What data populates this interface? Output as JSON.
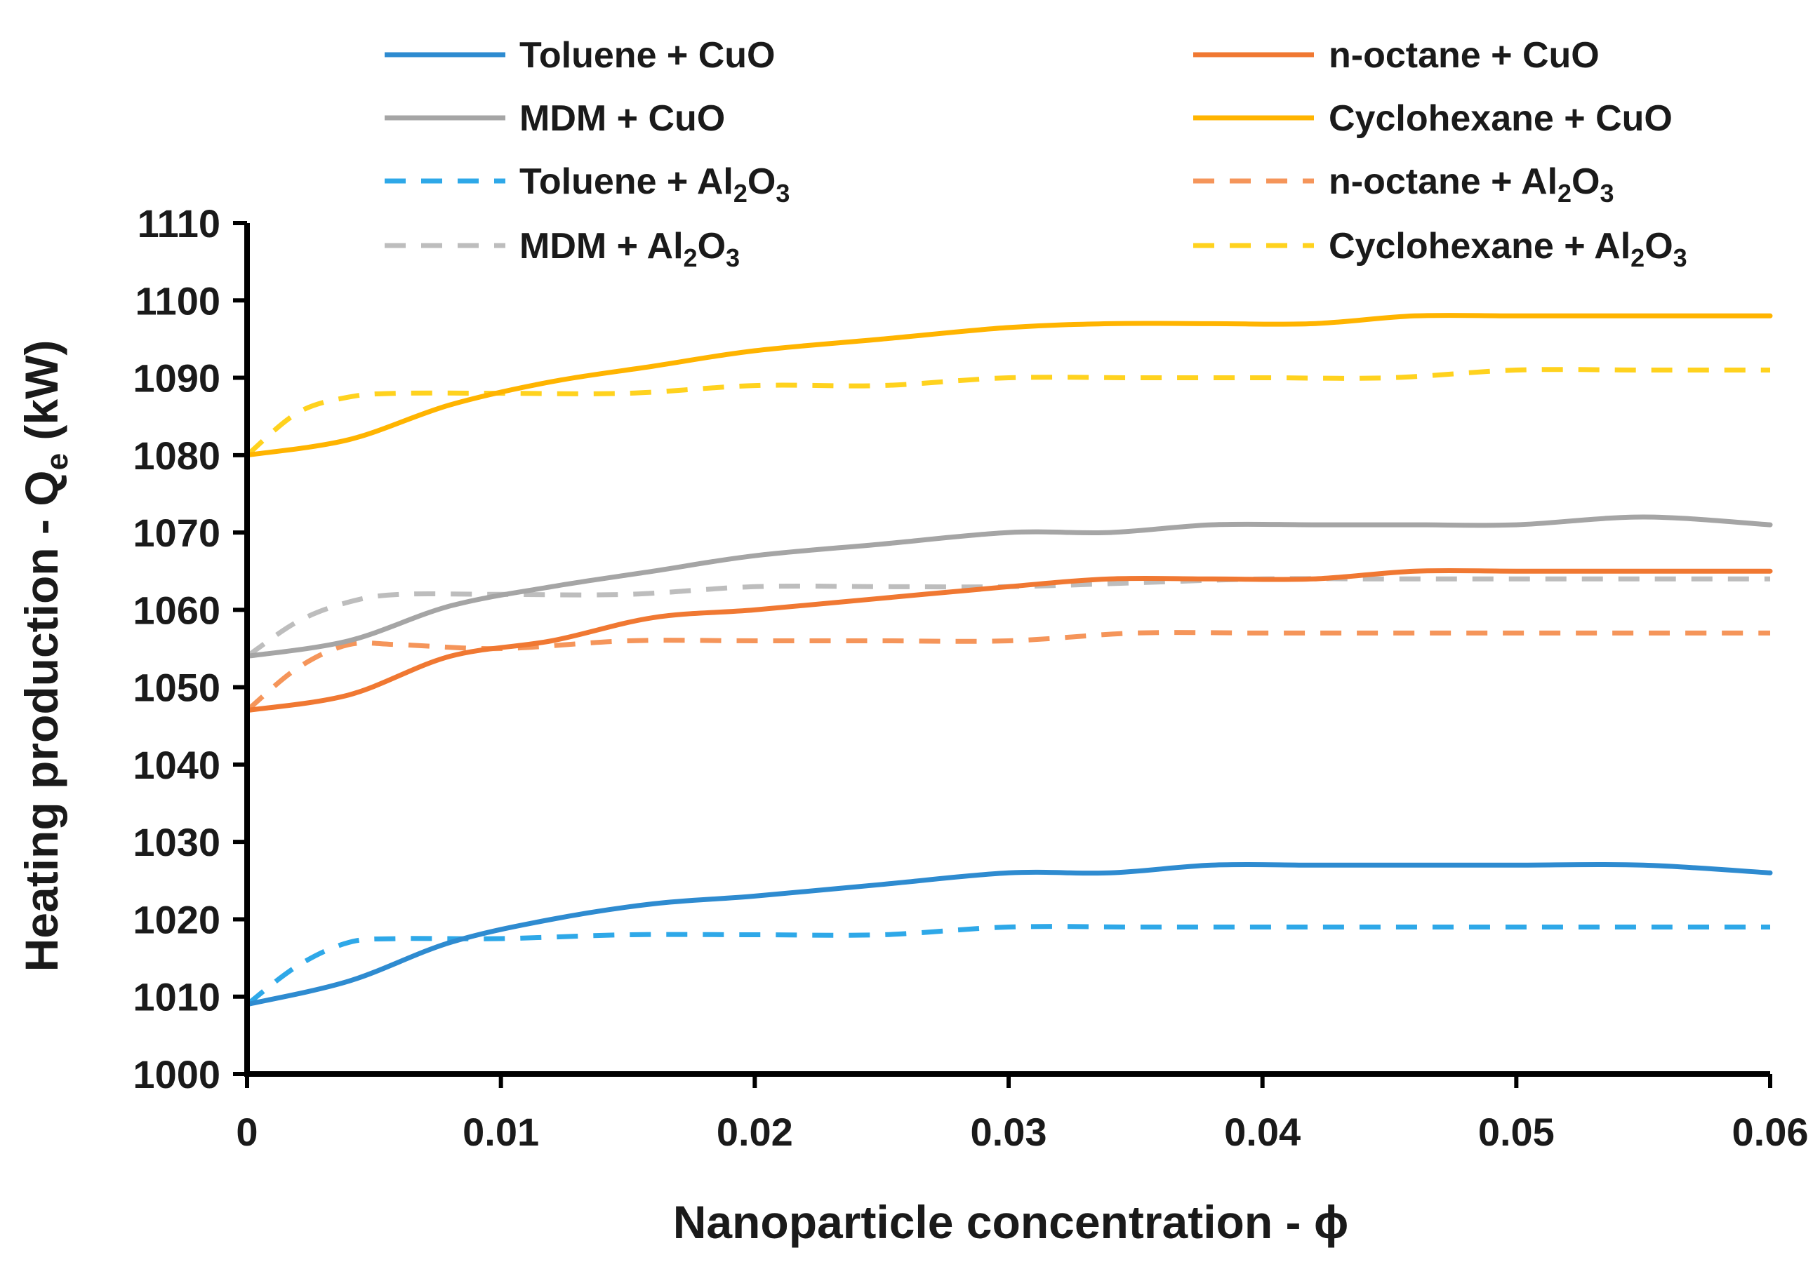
{
  "chart_data": {
    "type": "line",
    "xlabel": "Nanoparticle concentration - ϕ",
    "ylabel": "Heating production - Q",
    "ylabel_subscript": "e",
    "ylabel_unit": " (kW)",
    "xlim": [
      0,
      0.06
    ],
    "ylim": [
      1000,
      1110
    ],
    "xticks": [
      0,
      0.01,
      0.02,
      0.03,
      0.04,
      0.05,
      0.06
    ],
    "yticks": [
      1000,
      1010,
      1020,
      1030,
      1040,
      1050,
      1060,
      1070,
      1080,
      1090,
      1100,
      1110
    ],
    "xtick_labels": [
      "0",
      "0.01",
      "0.02",
      "0.03",
      "0.04",
      "0.05",
      "0.06"
    ],
    "ytick_labels": [
      "1000",
      "1010",
      "1020",
      "1030",
      "1040",
      "1050",
      "1060",
      "1070",
      "1080",
      "1090",
      "1100",
      "1110"
    ],
    "grid": false,
    "legend_position": "top",
    "series": [
      {
        "name": "Toluene + CuO",
        "legend": [
          "Toluene + CuO"
        ],
        "color": "#2e8bd0",
        "dash": false,
        "x": [
          0,
          0.004,
          0.008,
          0.012,
          0.016,
          0.02,
          0.025,
          0.03,
          0.034,
          0.038,
          0.042,
          0.046,
          0.05,
          0.055,
          0.06
        ],
        "y": [
          1009,
          1012,
          1017,
          1020,
          1022,
          1023,
          1024.5,
          1026,
          1026,
          1027,
          1027,
          1027,
          1027,
          1027,
          1026
        ]
      },
      {
        "name": "n-octane + CuO",
        "legend": [
          "n-octane + CuO"
        ],
        "color": "#f07832",
        "dash": false,
        "x": [
          0,
          0.004,
          0.008,
          0.012,
          0.016,
          0.02,
          0.025,
          0.03,
          0.034,
          0.038,
          0.042,
          0.046,
          0.05,
          0.055,
          0.06
        ],
        "y": [
          1047,
          1049,
          1054,
          1056,
          1059,
          1060,
          1061.5,
          1063,
          1064,
          1064,
          1064,
          1065,
          1065,
          1065,
          1065
        ]
      },
      {
        "name": "MDM + CuO",
        "legend": [
          "MDM + CuO"
        ],
        "color": "#a5a5a5",
        "dash": false,
        "x": [
          0,
          0.004,
          0.008,
          0.012,
          0.016,
          0.02,
          0.025,
          0.03,
          0.034,
          0.038,
          0.042,
          0.046,
          0.05,
          0.055,
          0.06
        ],
        "y": [
          1054,
          1056,
          1060.5,
          1063,
          1065,
          1067,
          1068.5,
          1070,
          1070,
          1071,
          1071,
          1071,
          1071,
          1072,
          1071
        ]
      },
      {
        "name": "Cyclohexane + CuO",
        "legend": [
          "Cyclohexane + CuO"
        ],
        "color": "#ffb400",
        "dash": false,
        "x": [
          0,
          0.004,
          0.008,
          0.012,
          0.016,
          0.02,
          0.025,
          0.03,
          0.034,
          0.038,
          0.042,
          0.046,
          0.05,
          0.055,
          0.06
        ],
        "y": [
          1080,
          1082,
          1086.5,
          1089.5,
          1091.5,
          1093.5,
          1095,
          1096.5,
          1097,
          1097,
          1097,
          1098,
          1098,
          1098,
          1098
        ]
      },
      {
        "name": "Toluene + Al2O3",
        "legend": [
          "Toluene + Al",
          "2",
          "O",
          "3"
        ],
        "color": "#2ea8e8",
        "dash": true,
        "x": [
          0,
          0.002,
          0.004,
          0.006,
          0.01,
          0.015,
          0.02,
          0.025,
          0.03,
          0.035,
          0.04,
          0.045,
          0.05,
          0.055,
          0.06
        ],
        "y": [
          1009,
          1014,
          1017,
          1017.5,
          1017.5,
          1018,
          1018,
          1018,
          1019,
          1019,
          1019,
          1019,
          1019,
          1019,
          1019
        ]
      },
      {
        "name": "n-octane + Al2O3",
        "legend": [
          "n-octane + Al",
          "2",
          "O",
          "3"
        ],
        "color": "#f5955a",
        "dash": true,
        "x": [
          0,
          0.002,
          0.004,
          0.006,
          0.01,
          0.015,
          0.02,
          0.025,
          0.03,
          0.035,
          0.04,
          0.045,
          0.05,
          0.055,
          0.06
        ],
        "y": [
          1047,
          1052.5,
          1055.5,
          1055.5,
          1055,
          1056,
          1056,
          1056,
          1056,
          1057,
          1057,
          1057,
          1057,
          1057,
          1057
        ]
      },
      {
        "name": "MDM + Al2O3",
        "legend": [
          "MDM + Al",
          "2",
          "O",
          "3"
        ],
        "color": "#bdbdbd",
        "dash": true,
        "x": [
          0,
          0.002,
          0.004,
          0.006,
          0.01,
          0.015,
          0.02,
          0.025,
          0.03,
          0.035,
          0.04,
          0.045,
          0.05,
          0.055,
          0.06
        ],
        "y": [
          1054,
          1058.5,
          1061,
          1062,
          1062,
          1062,
          1063,
          1063,
          1063,
          1063.5,
          1064,
          1064,
          1064,
          1064,
          1064
        ]
      },
      {
        "name": "Cyclohexane + Al2O3",
        "legend": [
          "Cyclohexane + Al",
          "2",
          "O",
          "3"
        ],
        "color": "#ffd21e",
        "dash": true,
        "x": [
          0,
          0.002,
          0.004,
          0.006,
          0.01,
          0.015,
          0.02,
          0.025,
          0.03,
          0.035,
          0.04,
          0.045,
          0.05,
          0.055,
          0.06
        ],
        "y": [
          1080,
          1085.5,
          1087.5,
          1088,
          1088,
          1088,
          1089,
          1089,
          1090,
          1090,
          1090,
          1090,
          1091,
          1091,
          1091
        ]
      }
    ]
  }
}
